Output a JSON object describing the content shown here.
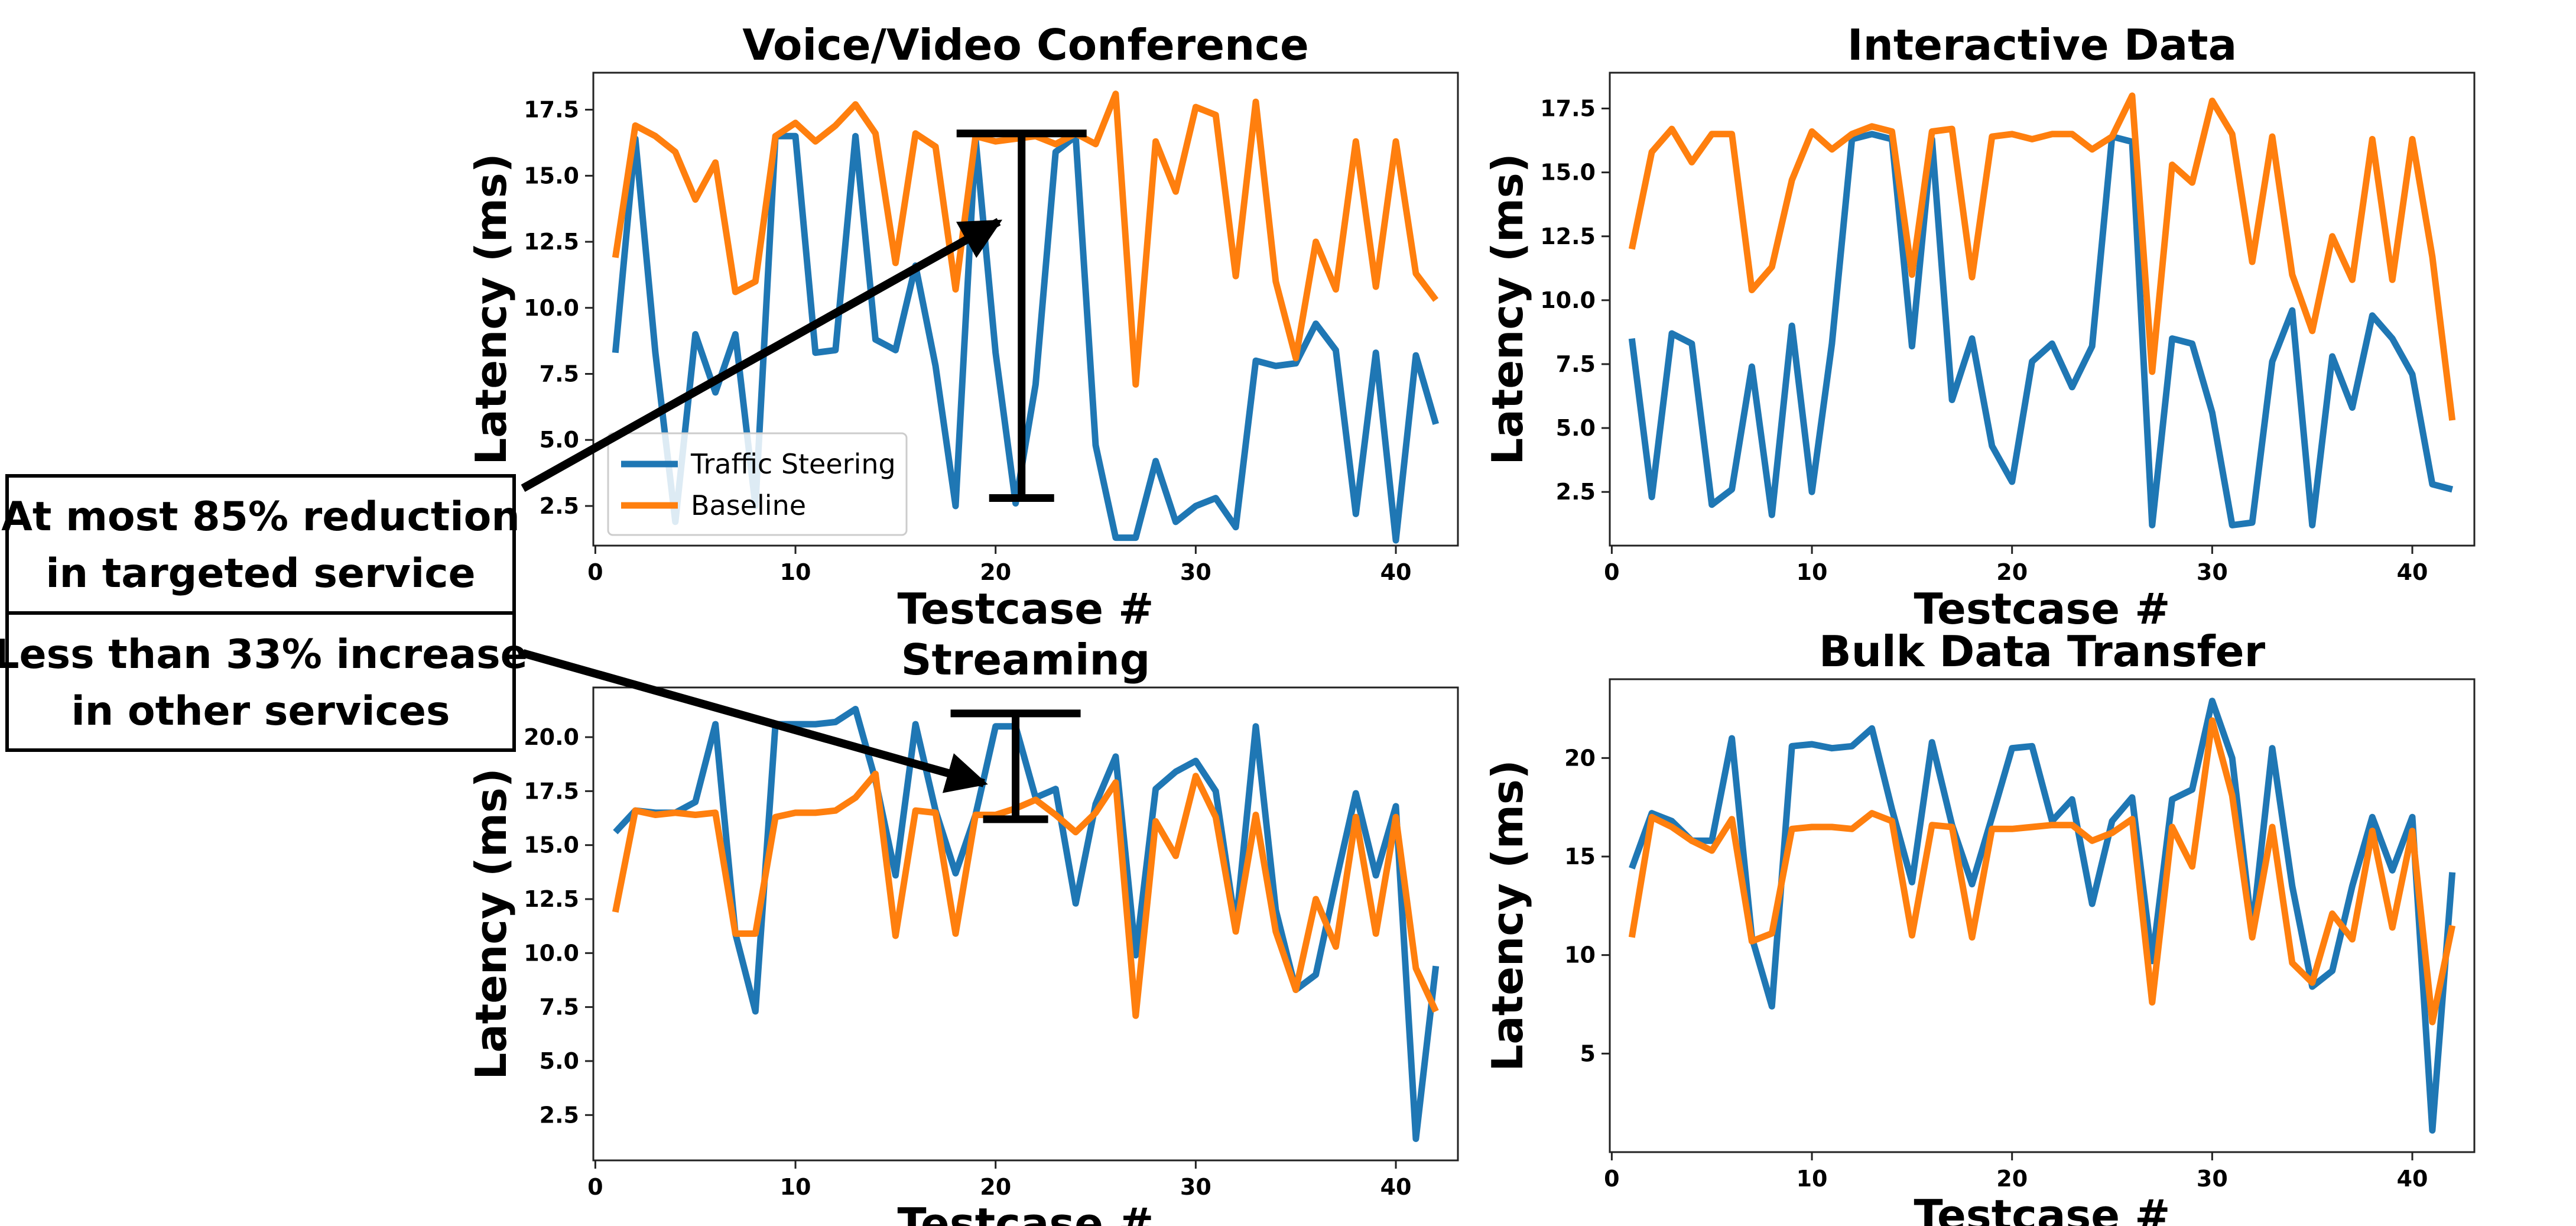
{
  "chart_data": [
    {
      "type": "line",
      "title": "Voice/Video Conference",
      "xlabel": "Testcase #",
      "ylabel": "Latency (ms)",
      "xlim": [
        -0.1,
        43.1
      ],
      "ylim": [
        1.0,
        18.9
      ],
      "xticks": [
        0,
        10,
        20,
        30,
        40
      ],
      "yticks": [
        2.5,
        5.0,
        7.5,
        10.0,
        12.5,
        15.0,
        17.5
      ],
      "legend": "lower-left",
      "x": [
        1,
        2,
        3,
        4,
        5,
        6,
        7,
        8,
        9,
        10,
        11,
        12,
        13,
        14,
        15,
        16,
        17,
        18,
        19,
        20,
        21,
        22,
        23,
        24,
        25,
        26,
        27,
        28,
        29,
        30,
        31,
        32,
        33,
        34,
        35,
        36,
        37,
        38,
        39,
        40,
        41,
        42
      ],
      "series": [
        {
          "name": "Traffic Steering",
          "color": "#1f77b4",
          "values": [
            8.3,
            16.4,
            8.3,
            1.9,
            9.0,
            6.8,
            9.0,
            2.5,
            16.5,
            16.5,
            8.3,
            8.4,
            16.5,
            8.8,
            8.4,
            11.6,
            7.8,
            2.5,
            16.4,
            8.3,
            2.6,
            7.1,
            15.9,
            16.5,
            4.8,
            1.3,
            1.3,
            4.2,
            1.9,
            2.5,
            2.8,
            1.7,
            8.0,
            7.8,
            7.9,
            9.4,
            8.4,
            2.2,
            8.3,
            1.2,
            8.2,
            5.6
          ]
        },
        {
          "name": "Baseline",
          "color": "#ff7f0e",
          "values": [
            11.9,
            16.9,
            16.5,
            15.9,
            14.1,
            15.5,
            10.6,
            11.0,
            16.5,
            17.0,
            16.3,
            16.9,
            17.7,
            16.6,
            11.7,
            16.6,
            16.1,
            10.7,
            16.5,
            16.3,
            16.4,
            16.5,
            16.2,
            16.6,
            16.2,
            18.1,
            7.1,
            16.3,
            14.4,
            17.6,
            17.3,
            11.2,
            17.8,
            11.0,
            8.1,
            12.5,
            10.7,
            16.3,
            10.8,
            16.3,
            11.3,
            10.3
          ]
        }
      ]
    },
    {
      "type": "line",
      "title": "Interactive Data",
      "xlabel": "Testcase #",
      "ylabel": "Latency (ms)",
      "xlim": [
        -0.1,
        43.1
      ],
      "ylim": [
        0.4,
        18.9
      ],
      "xticks": [
        0,
        10,
        20,
        30,
        40
      ],
      "yticks": [
        2.5,
        5.0,
        7.5,
        10.0,
        12.5,
        15.0,
        17.5
      ],
      "x": [
        1,
        2,
        3,
        4,
        5,
        6,
        7,
        8,
        9,
        10,
        11,
        12,
        13,
        14,
        15,
        16,
        17,
        18,
        19,
        20,
        21,
        22,
        23,
        24,
        25,
        26,
        27,
        28,
        29,
        30,
        31,
        32,
        33,
        34,
        35,
        36,
        37,
        38,
        39,
        40,
        41,
        42
      ],
      "series": [
        {
          "name": "Traffic Steering",
          "color": "#1f77b4",
          "values": [
            8.5,
            2.3,
            8.7,
            8.3,
            2.0,
            2.6,
            7.4,
            1.6,
            9.0,
            2.5,
            8.3,
            16.3,
            16.5,
            16.3,
            8.2,
            16.3,
            6.1,
            8.5,
            4.3,
            2.9,
            7.6,
            8.3,
            6.6,
            8.2,
            16.4,
            16.2,
            1.2,
            8.5,
            8.3,
            5.6,
            1.2,
            1.3,
            7.6,
            9.6,
            1.2,
            7.8,
            5.8,
            9.4,
            8.5,
            7.1,
            2.8,
            2.6
          ]
        },
        {
          "name": "Baseline",
          "color": "#ff7f0e",
          "values": [
            12.0,
            15.8,
            16.7,
            15.4,
            16.5,
            16.5,
            10.4,
            11.3,
            14.7,
            16.6,
            15.9,
            16.5,
            16.8,
            16.6,
            11.0,
            16.6,
            16.7,
            10.9,
            16.4,
            16.5,
            16.3,
            16.5,
            16.5,
            15.9,
            16.4,
            18.0,
            7.2,
            15.3,
            14.6,
            17.8,
            16.5,
            11.5,
            16.4,
            11.0,
            8.8,
            12.5,
            10.8,
            16.3,
            10.8,
            16.3,
            11.7,
            5.3
          ]
        }
      ]
    },
    {
      "type": "line",
      "title": "Streaming",
      "xlabel": "Testcase #",
      "ylabel": "Latency (ms)",
      "xlim": [
        -0.1,
        43.1
      ],
      "ylim": [
        0.4,
        22.3
      ],
      "xticks": [
        0,
        10,
        20,
        30,
        40
      ],
      "yticks": [
        2.5,
        5.0,
        7.5,
        10.0,
        12.5,
        15.0,
        17.5,
        20.0
      ],
      "x": [
        1,
        2,
        3,
        4,
        5,
        6,
        7,
        8,
        9,
        10,
        11,
        12,
        13,
        14,
        15,
        16,
        17,
        18,
        19,
        20,
        21,
        22,
        23,
        24,
        25,
        26,
        27,
        28,
        29,
        30,
        31,
        32,
        33,
        34,
        35,
        36,
        37,
        38,
        39,
        40,
        41,
        42
      ],
      "series": [
        {
          "name": "Traffic Steering",
          "color": "#1f77b4",
          "values": [
            15.6,
            16.6,
            16.5,
            16.5,
            17.0,
            20.6,
            10.9,
            7.3,
            20.6,
            20.6,
            20.6,
            20.7,
            21.3,
            18.0,
            13.6,
            20.6,
            16.6,
            13.7,
            16.4,
            20.5,
            20.5,
            17.2,
            17.6,
            12.3,
            16.9,
            19.1,
            9.9,
            17.6,
            18.4,
            18.9,
            17.5,
            11.2,
            20.5,
            12.0,
            8.3,
            9.0,
            13.3,
            17.4,
            13.6,
            16.8,
            1.4,
            9.4
          ]
        },
        {
          "name": "Baseline",
          "color": "#ff7f0e",
          "values": [
            11.9,
            16.6,
            16.4,
            16.5,
            16.4,
            16.5,
            10.9,
            10.9,
            16.3,
            16.5,
            16.5,
            16.6,
            17.2,
            18.3,
            10.8,
            16.6,
            16.5,
            10.9,
            16.4,
            16.4,
            16.7,
            17.1,
            16.4,
            15.6,
            16.5,
            17.9,
            7.1,
            16.1,
            14.5,
            18.2,
            16.3,
            11.0,
            16.4,
            11.0,
            8.3,
            12.5,
            10.3,
            16.3,
            10.9,
            16.3,
            9.3,
            7.3
          ]
        }
      ]
    },
    {
      "type": "line",
      "title": "Bulk Data Transfer",
      "xlabel": "Testcase #",
      "ylabel": "Latency (ms)",
      "xlim": [
        -0.1,
        43.1
      ],
      "ylim": [
        0.0,
        24.0
      ],
      "xticks": [
        0,
        10,
        20,
        30,
        40
      ],
      "yticks": [
        5,
        10,
        15,
        20
      ],
      "x": [
        1,
        2,
        3,
        4,
        5,
        6,
        7,
        8,
        9,
        10,
        11,
        12,
        13,
        14,
        15,
        16,
        17,
        18,
        19,
        20,
        21,
        22,
        23,
        24,
        25,
        26,
        27,
        28,
        29,
        30,
        31,
        32,
        33,
        34,
        35,
        36,
        37,
        38,
        39,
        40,
        41,
        42
      ],
      "series": [
        {
          "name": "Traffic Steering",
          "color": "#1f77b4",
          "values": [
            14.4,
            17.2,
            16.8,
            15.8,
            15.8,
            21.0,
            10.9,
            7.4,
            20.6,
            20.7,
            20.5,
            20.6,
            21.5,
            17.4,
            13.7,
            20.8,
            16.6,
            13.6,
            17.0,
            20.5,
            20.6,
            16.8,
            17.9,
            12.6,
            16.8,
            18.0,
            9.7,
            17.9,
            18.4,
            22.9,
            20.0,
            11.2,
            20.5,
            13.5,
            8.4,
            9.2,
            13.5,
            17.0,
            14.3,
            17.0,
            1.1,
            14.2
          ]
        },
        {
          "name": "Baseline",
          "color": "#ff7f0e",
          "values": [
            10.9,
            17.0,
            16.5,
            15.8,
            15.3,
            16.9,
            10.7,
            11.1,
            16.4,
            16.5,
            16.5,
            16.4,
            17.2,
            16.8,
            11.0,
            16.6,
            16.5,
            10.9,
            16.4,
            16.4,
            16.5,
            16.6,
            16.6,
            15.8,
            16.2,
            16.9,
            7.6,
            16.5,
            14.5,
            21.9,
            18.1,
            10.9,
            16.5,
            9.6,
            8.6,
            12.1,
            10.8,
            16.3,
            11.4,
            16.3,
            6.6,
            11.5
          ]
        }
      ]
    }
  ],
  "annotations": {
    "callout_top_line1": "At most 85% reduction",
    "callout_top_line2": "in targeted service",
    "callout_bottom_line1": "Less than 33% increase",
    "callout_bottom_line2": "in other services",
    "top_range_ms": [
      2.8,
      16.6
    ],
    "bottom_range_ms": [
      16.2,
      21.1
    ]
  }
}
